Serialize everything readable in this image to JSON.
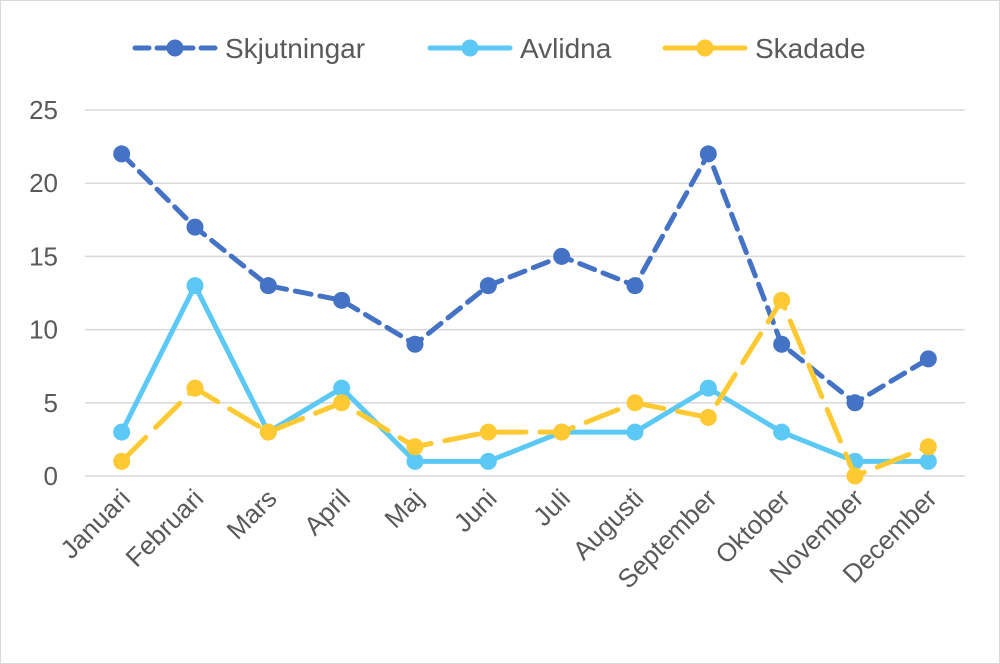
{
  "chart_data": {
    "type": "line",
    "categories": [
      "Januari",
      "Februari",
      "Mars",
      "April",
      "Maj",
      "Juni",
      "Juli",
      "Augusti",
      "September",
      "Oktober",
      "November",
      "December"
    ],
    "series": [
      {
        "name": "Skjutningar",
        "values": [
          22,
          17,
          13,
          12,
          9,
          13,
          15,
          13,
          22,
          9,
          5,
          8
        ],
        "color": "#4472C4",
        "dash": "dashed"
      },
      {
        "name": "Avlidna",
        "values": [
          3,
          13,
          3,
          6,
          1,
          1,
          3,
          3,
          6,
          3,
          1,
          1
        ],
        "color": "#5BC8F5",
        "dash": "solid"
      },
      {
        "name": "Skadade",
        "values": [
          1,
          6,
          3,
          5,
          2,
          3,
          3,
          5,
          4,
          12,
          0,
          2
        ],
        "color": "#FFC933",
        "dash": "longdash"
      }
    ],
    "ylim": [
      0,
      25
    ],
    "yticks": [
      0,
      5,
      10,
      15,
      20,
      25
    ],
    "grid": true,
    "legend": "top"
  }
}
